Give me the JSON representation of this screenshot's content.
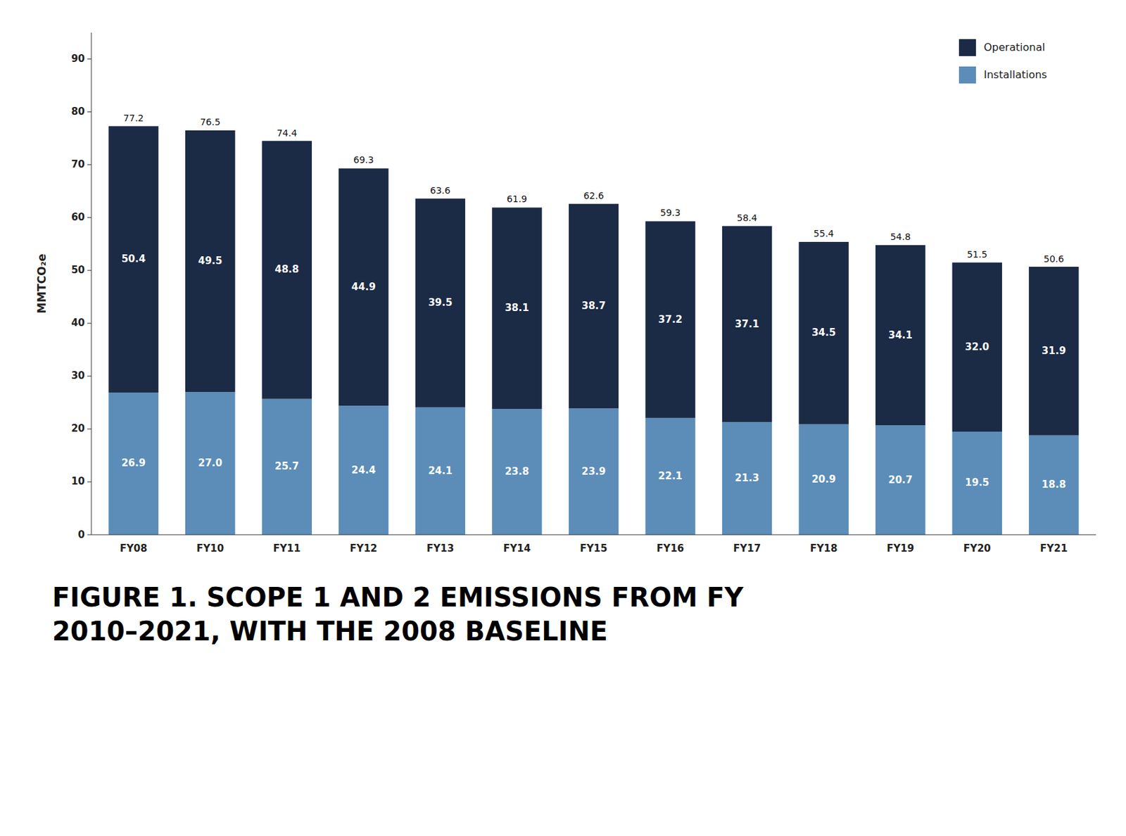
{
  "chart_data": {
    "type": "bar",
    "stacked": true,
    "data_labels": true,
    "title": "FIGURE 1. SCOPE 1 AND 2 EMISSIONS FROM FY\n2010–2021, WITH THE 2008 BASELINE",
    "y_label": "MMTCO₂e",
    "categories": [
      "FY08",
      "FY10",
      "FY11",
      "FY12",
      "FY13",
      "FY14",
      "FY15",
      "FY16",
      "FY17",
      "FY18",
      "FY19",
      "FY20",
      "FY21"
    ],
    "series": [
      {
        "name": "Installations",
        "color": "#5b8db8",
        "values": [
          26.9,
          27.0,
          25.7,
          24.4,
          24.1,
          23.8,
          23.9,
          22.1,
          21.3,
          20.9,
          20.7,
          19.5,
          18.8
        ]
      },
      {
        "name": "Operational",
        "color": "#1b2a45",
        "values": [
          50.4,
          49.5,
          48.8,
          44.9,
          39.5,
          38.1,
          38.7,
          37.2,
          37.1,
          34.5,
          34.1,
          32.0,
          31.9
        ]
      }
    ],
    "totals": [
      77.2,
      76.5,
      74.4,
      69.3,
      63.6,
      61.9,
      62.6,
      59.3,
      58.4,
      55.4,
      54.8,
      51.5,
      50.6
    ],
    "ylim": [
      0,
      95
    ],
    "yticks": [
      0,
      10,
      20,
      30,
      40,
      50,
      60,
      70,
      80,
      90
    ],
    "grid": false,
    "legend": "upper right"
  }
}
